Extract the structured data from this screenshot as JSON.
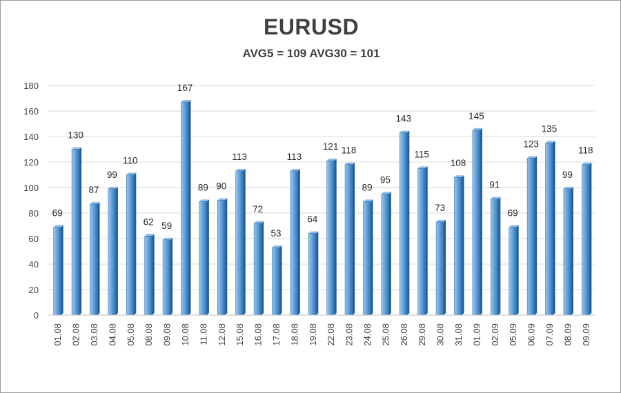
{
  "chart_data": {
    "type": "bar",
    "title": "EURUSD",
    "subtitle": "AVG5 = 109 AVG30 = 101",
    "xlabel": "",
    "ylabel": "",
    "categories": [
      "01.08",
      "02.08",
      "03.08",
      "04.08",
      "05.08",
      "08.08",
      "09.08",
      "10.08",
      "11.08",
      "12.08",
      "15.08",
      "16.08",
      "17.08",
      "18.08",
      "19.08",
      "22.08",
      "23.08",
      "24.08",
      "25.08",
      "26.08",
      "29.08",
      "30.08",
      "31.08",
      "01.09",
      "02.09",
      "05.09",
      "06.09",
      "07.09",
      "08.09",
      "09.09"
    ],
    "values": [
      69,
      130,
      87,
      99,
      110,
      62,
      59,
      167,
      89,
      90,
      113,
      72,
      53,
      113,
      64,
      121,
      118,
      89,
      95,
      143,
      115,
      73,
      108,
      145,
      91,
      69,
      123,
      135,
      99,
      118
    ],
    "ylim": [
      0,
      180
    ],
    "yticks": [
      0,
      20,
      40,
      60,
      80,
      100,
      120,
      140,
      160,
      180
    ],
    "grid": true,
    "legend": "none",
    "bar_color": "#5b9bd5",
    "bar_edge_color": "#2e75b6",
    "data_labels": true
  }
}
